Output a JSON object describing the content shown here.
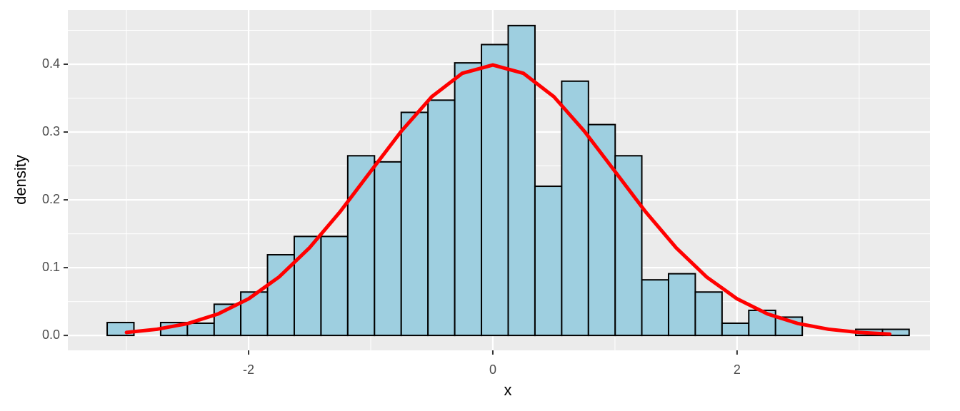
{
  "chart_data": {
    "type": "histogram",
    "xlabel": "x",
    "ylabel": "density",
    "bins": [
      -3.158,
      -2.939,
      -2.72,
      -2.501,
      -2.282,
      -2.064,
      -1.845,
      -1.626,
      -1.407,
      -1.188,
      -0.969,
      -0.75,
      -0.531,
      -0.312,
      -0.093,
      0.126,
      0.345,
      0.564,
      0.783,
      1.002,
      1.22,
      1.439,
      1.658,
      1.877,
      2.096,
      2.315,
      2.534,
      2.753,
      2.972,
      3.191,
      3.409
    ],
    "values": [
      0.019,
      0,
      0.019,
      0.018,
      0.046,
      0.064,
      0.119,
      0.146,
      0.146,
      0.265,
      0.256,
      0.329,
      0.347,
      0.402,
      0.429,
      0.457,
      0.22,
      0.375,
      0.311,
      0.265,
      0.082,
      0.091,
      0.064,
      0.018,
      0.037,
      0.027,
      0,
      0,
      0.009,
      0.009
    ],
    "color": "#9ecfe0",
    "edgecolor": "#000000",
    "curve": {
      "type": "line",
      "color": "#ff0000",
      "x": [
        -3,
        -2.75,
        -2.5,
        -2.25,
        -2,
        -1.75,
        -1.5,
        -1.25,
        -1,
        -0.75,
        -0.5,
        -0.25,
        0,
        0.25,
        0.5,
        0.75,
        1,
        1.25,
        1.5,
        1.75,
        2,
        2.25,
        2.5,
        2.75,
        3,
        3.25
      ],
      "values": [
        0.0044,
        0.0091,
        0.0175,
        0.0317,
        0.054,
        0.0863,
        0.1295,
        0.1826,
        0.242,
        0.3011,
        0.3521,
        0.3867,
        0.3989,
        0.3867,
        0.3521,
        0.3011,
        0.242,
        0.1826,
        0.1295,
        0.0863,
        0.054,
        0.0317,
        0.0175,
        0.0091,
        0.0044,
        0.002
      ]
    },
    "xlim": [
      -3.48,
      3.58
    ],
    "ylim": [
      -0.022,
      0.48
    ],
    "xticks": [
      -2,
      0,
      2
    ],
    "yticks": [
      {
        "value": 0,
        "label": "0.0"
      },
      0.1,
      0.2,
      0.3,
      0.4
    ],
    "x_minor_ticks": [
      -3,
      -1,
      1,
      3
    ],
    "y_minor_ticks": [
      0.05,
      0.15,
      0.25,
      0.35,
      0.45
    ],
    "grid": true
  }
}
